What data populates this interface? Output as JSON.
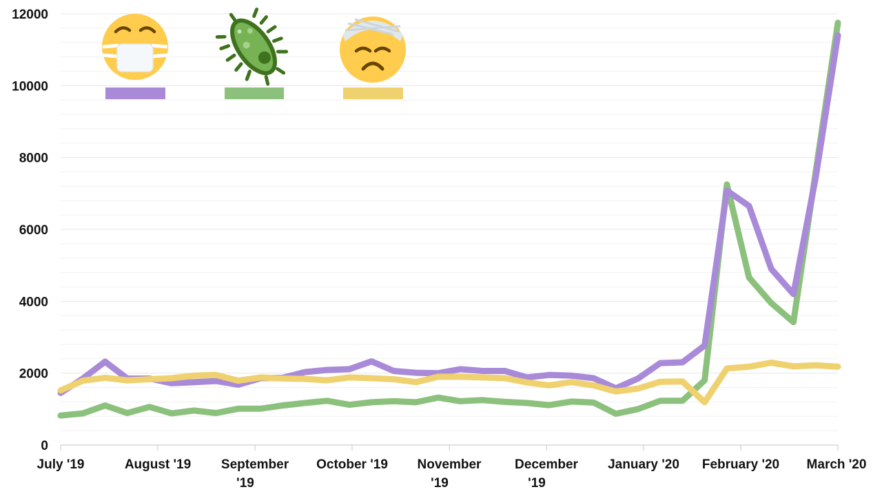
{
  "chart_data": {
    "type": "line",
    "title": "",
    "xlabel": "",
    "ylabel": "",
    "ylim": [
      0,
      12000
    ],
    "yticks": [
      0,
      2000,
      4000,
      6000,
      8000,
      10000,
      12000
    ],
    "grid": true,
    "legend_placement": "top-left",
    "x_tick_labels": [
      [
        "July '19"
      ],
      [
        "August '19"
      ],
      [
        "September",
        "'19"
      ],
      [
        "October '19"
      ],
      [
        "November",
        "'19"
      ],
      [
        "December",
        "'19"
      ],
      [
        "January '20"
      ],
      [
        "February '20"
      ],
      [
        "March '20"
      ]
    ],
    "series": [
      {
        "icon": "face-with-medical-mask-icon",
        "color": "#A98AD8",
        "values": [
          1450,
          1850,
          2320,
          1850,
          1850,
          1720,
          1750,
          1780,
          1680,
          1860,
          1870,
          2030,
          2090,
          2110,
          2330,
          2060,
          2010,
          2000,
          2110,
          2060,
          2060,
          1880,
          1950,
          1930,
          1860,
          1580,
          1850,
          2280,
          2300,
          2770,
          7080,
          6650,
          4900,
          4200,
          7450,
          11400
        ]
      },
      {
        "icon": "microbe-icon",
        "color": "#8CC17D",
        "values": [
          820,
          880,
          1100,
          890,
          1060,
          880,
          960,
          890,
          1010,
          1010,
          1100,
          1170,
          1230,
          1120,
          1190,
          1220,
          1190,
          1320,
          1220,
          1250,
          1200,
          1170,
          1110,
          1210,
          1180,
          870,
          1000,
          1230,
          1230,
          1800,
          7250,
          4660,
          3950,
          3420,
          7600,
          11750
        ]
      },
      {
        "icon": "face-with-head-bandage-icon",
        "color": "#EFD170",
        "values": [
          1520,
          1790,
          1870,
          1800,
          1830,
          1860,
          1930,
          1950,
          1790,
          1880,
          1850,
          1840,
          1800,
          1880,
          1860,
          1830,
          1750,
          1900,
          1900,
          1880,
          1860,
          1740,
          1660,
          1750,
          1660,
          1490,
          1570,
          1760,
          1770,
          1190,
          2130,
          2180,
          2290,
          2190,
          2220,
          2180
        ]
      }
    ]
  }
}
